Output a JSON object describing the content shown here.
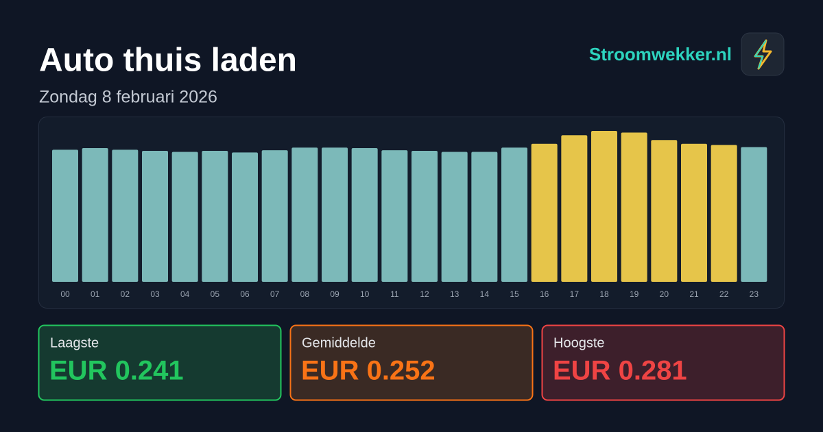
{
  "header": {
    "title": "Auto thuis laden",
    "subtitle": "Zondag 8 februari 2026",
    "brand": "Stroomwekker.nl"
  },
  "chart_data": {
    "type": "bar",
    "categories": [
      "00",
      "01",
      "02",
      "03",
      "04",
      "05",
      "06",
      "07",
      "08",
      "09",
      "10",
      "11",
      "12",
      "13",
      "14",
      "15",
      "16",
      "17",
      "18",
      "19",
      "20",
      "21",
      "22",
      "23"
    ],
    "values": [
      0.246,
      0.249,
      0.246,
      0.244,
      0.242,
      0.244,
      0.241,
      0.245,
      0.25,
      0.25,
      0.249,
      0.245,
      0.244,
      0.242,
      0.242,
      0.25,
      0.257,
      0.273,
      0.281,
      0.278,
      0.264,
      0.257,
      0.255,
      0.251
    ],
    "colors": [
      "#7cb9b9",
      "#7cb9b9",
      "#7cb9b9",
      "#7cb9b9",
      "#7cb9b9",
      "#7cb9b9",
      "#7cb9b9",
      "#7cb9b9",
      "#7cb9b9",
      "#7cb9b9",
      "#7cb9b9",
      "#7cb9b9",
      "#7cb9b9",
      "#7cb9b9",
      "#7cb9b9",
      "#7cb9b9",
      "#e6c54a",
      "#e6c54a",
      "#e6c54a",
      "#e6c54a",
      "#e6c54a",
      "#e6c54a",
      "#e6c54a",
      "#7cb9b9"
    ],
    "ylim": [
      0,
      0.281
    ]
  },
  "stats": [
    {
      "label": "Laagste",
      "value": "EUR 0.241",
      "color": "#22c55e",
      "background": "#153a30"
    },
    {
      "label": "Gemiddelde",
      "value": "EUR 0.252",
      "color": "#f97316",
      "background": "#3a2a24"
    },
    {
      "label": "Hoogste",
      "value": "EUR 0.281",
      "color": "#ef4444",
      "background": "#3d1f2b"
    }
  ]
}
